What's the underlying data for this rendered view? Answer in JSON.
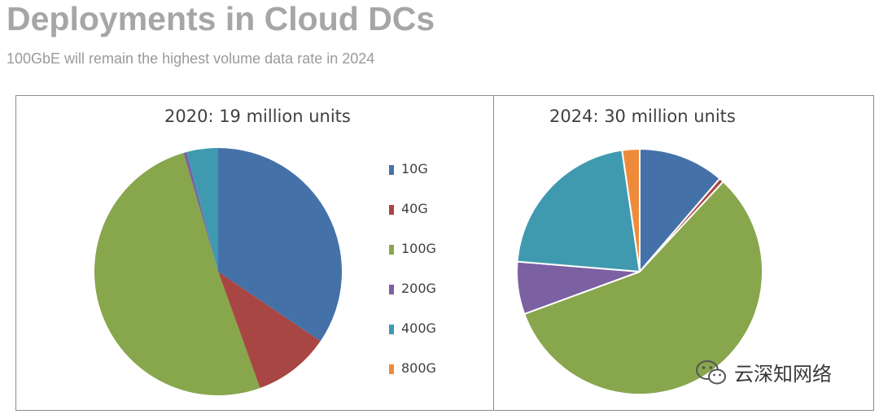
{
  "header": {
    "title": "Deployments in Cloud DCs",
    "subtitle": "100GbE will remain the highest volume data rate in 2024"
  },
  "colors": {
    "10G": "#4472a8",
    "40G": "#a84643",
    "100G": "#88a64c",
    "200G": "#7b60a2",
    "400G": "#3f9ab0",
    "800G": "#ee8b3a"
  },
  "chart_data": [
    {
      "type": "pie",
      "title": "2020: 19 million units",
      "categories": [
        "10G",
        "40G",
        "100G",
        "200G",
        "400G",
        "800G"
      ],
      "values": [
        34.5,
        10.0,
        51.0,
        0.4,
        4.1,
        0.0
      ],
      "unit": "percent"
    },
    {
      "type": "pie",
      "title": "2024: 30 million units",
      "categories": [
        "10G",
        "40G",
        "100G",
        "200G",
        "400G",
        "800G"
      ],
      "values": [
        11.3,
        0.6,
        57.5,
        6.9,
        21.4,
        2.3
      ],
      "unit": "percent"
    }
  ],
  "legend": {
    "placement": "between charts",
    "items": [
      "10G",
      "40G",
      "100G",
      "200G",
      "400G",
      "800G"
    ]
  },
  "watermark": {
    "icon": "wechat-icon",
    "text": "云深知网络"
  }
}
